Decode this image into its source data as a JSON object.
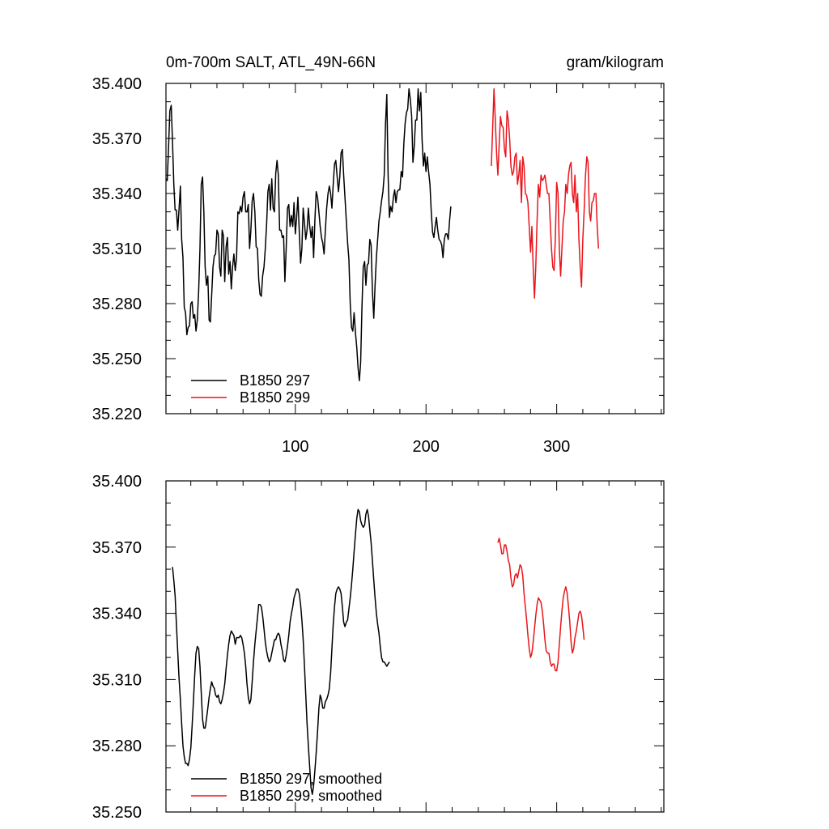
{
  "chart_data": [
    {
      "type": "line",
      "title_left": "0m-700m SALT, ATL_49N-66N",
      "title_right": "gram/kilogram",
      "xlabel": "",
      "ylabel": "",
      "xlim": [
        1,
        382
      ],
      "ylim": [
        35.22,
        35.4
      ],
      "x_ticks": [
        100,
        200,
        300
      ],
      "x_tick_labels": [
        "100",
        "200",
        "300"
      ],
      "y_ticks": [
        35.22,
        35.25,
        35.28,
        35.31,
        35.34,
        35.37,
        35.4
      ],
      "y_tick_labels": [
        "35.220",
        "35.250",
        "35.280",
        "35.310",
        "35.340",
        "35.370",
        "35.400"
      ],
      "grid": false,
      "legend_position": "bottom-left",
      "series": [
        {
          "name": "B1850 297",
          "color": "#000000",
          "x0": 1,
          "y": [
            35.348,
            35.347,
            35.365,
            35.385,
            35.388,
            35.368,
            35.345,
            35.331,
            35.331,
            35.32,
            35.331,
            35.344,
            35.315,
            35.305,
            35.278,
            35.275,
            35.263,
            35.267,
            35.268,
            35.28,
            35.281,
            35.272,
            35.274,
            35.265,
            35.271,
            35.287,
            35.31,
            35.345,
            35.349,
            35.33,
            35.3,
            35.29,
            35.295,
            35.271,
            35.27,
            35.285,
            35.3,
            35.306,
            35.307,
            35.32,
            35.318,
            35.3,
            35.295,
            35.32,
            35.317,
            35.292,
            35.311,
            35.316,
            35.296,
            35.303,
            35.288,
            35.3,
            35.307,
            35.298,
            35.305,
            35.33,
            35.329,
            35.333,
            35.33,
            35.338,
            35.341,
            35.33,
            35.33,
            35.334,
            35.31,
            35.32,
            35.336,
            35.34,
            35.33,
            35.311,
            35.31,
            35.293,
            35.285,
            35.284,
            35.295,
            35.3,
            35.31,
            35.323,
            35.341,
            35.345,
            35.331,
            35.348,
            35.332,
            35.33,
            35.351,
            35.358,
            35.35,
            35.32,
            35.32,
            35.316,
            35.317,
            35.292,
            35.31,
            35.332,
            35.334,
            35.322,
            35.328,
            35.322,
            35.335,
            35.318,
            35.327,
            35.338,
            35.32,
            35.302,
            35.31,
            35.332,
            35.324,
            35.315,
            35.32,
            35.332,
            35.322,
            35.316,
            35.322,
            35.305,
            35.326,
            35.341,
            35.338,
            35.33,
            35.322,
            35.316,
            35.313,
            35.307,
            35.32,
            35.332,
            35.34,
            35.344,
            35.34,
            35.332,
            35.345,
            35.356,
            35.358,
            35.349,
            35.341,
            35.349,
            35.362,
            35.364,
            35.35,
            35.338,
            35.325,
            35.313,
            35.304,
            35.28,
            35.267,
            35.265,
            35.275,
            35.264,
            35.256,
            35.245,
            35.238,
            35.248,
            35.278,
            35.3,
            35.303,
            35.29,
            35.301,
            35.302,
            35.315,
            35.312,
            35.287,
            35.272,
            35.29,
            35.305,
            35.315,
            35.325,
            35.33,
            35.336,
            35.341,
            35.35,
            35.378,
            35.394,
            35.35,
            35.327,
            35.333,
            35.33,
            35.338,
            35.342,
            35.335,
            35.341,
            35.342,
            35.342,
            35.352,
            35.349,
            35.367,
            35.378,
            35.384,
            35.386,
            35.397,
            35.391,
            35.382,
            35.357,
            35.366,
            35.38,
            35.38,
            35.397,
            35.385,
            35.395,
            35.369,
            35.355,
            35.362,
            35.352,
            35.36,
            35.352,
            35.345,
            35.33,
            35.319,
            35.316,
            35.322,
            35.327,
            35.32,
            35.315,
            35.314,
            35.312,
            35.305,
            35.315,
            35.318,
            35.318,
            35.315,
            35.325,
            35.333
          ]
        },
        {
          "name": "B1850 299",
          "color": "#e8151b",
          "x0": 250,
          "y": [
            35.355,
            35.375,
            35.397,
            35.38,
            35.362,
            35.35,
            35.367,
            35.382,
            35.377,
            35.376,
            35.364,
            35.36,
            35.385,
            35.38,
            35.37,
            35.355,
            35.35,
            35.352,
            35.36,
            35.362,
            35.345,
            35.35,
            35.358,
            35.335,
            35.36,
            35.355,
            35.34,
            35.339,
            35.335,
            35.322,
            35.308,
            35.322,
            35.3,
            35.283,
            35.3,
            35.325,
            35.345,
            35.338,
            35.35,
            35.347,
            35.348,
            35.35,
            35.345,
            35.34,
            35.34,
            35.325,
            35.31,
            35.3,
            35.298,
            35.316,
            35.346,
            35.34,
            35.31,
            35.295,
            35.31,
            35.325,
            35.33,
            35.345,
            35.34,
            35.35,
            35.355,
            35.357,
            35.34,
            35.335,
            35.35,
            35.33,
            35.34,
            35.315,
            35.3,
            35.289,
            35.315,
            35.33,
            35.349,
            35.36,
            35.357,
            35.33,
            35.325,
            35.335,
            35.336,
            35.34,
            35.34,
            35.322,
            35.31
          ]
        }
      ]
    },
    {
      "type": "line",
      "xlabel": "",
      "ylabel": "",
      "xlim": [
        1,
        382
      ],
      "ylim": [
        35.25,
        35.4
      ],
      "x_ticks": [
        100,
        200,
        300
      ],
      "y_ticks": [
        35.25,
        35.28,
        35.31,
        35.34,
        35.37,
        35.4
      ],
      "y_tick_labels": [
        "35.250",
        "35.280",
        "35.310",
        "35.340",
        "35.370",
        "35.400"
      ],
      "grid": false,
      "legend_position": "bottom-left",
      "series": [
        {
          "name": "B1850 297, smoothed",
          "color": "#000000",
          "x0": 6,
          "y": [
            35.361,
            35.355,
            35.348,
            35.335,
            35.323,
            35.311,
            35.301,
            35.29,
            35.28,
            35.275,
            35.272,
            35.272,
            35.271,
            35.274,
            35.279,
            35.289,
            35.3,
            35.312,
            35.322,
            35.325,
            35.324,
            35.316,
            35.304,
            35.292,
            35.288,
            35.288,
            35.292,
            35.297,
            35.302,
            35.306,
            35.309,
            35.307,
            35.306,
            35.303,
            35.302,
            35.303,
            35.3,
            35.299,
            35.301,
            35.304,
            35.308,
            35.315,
            35.321,
            35.326,
            35.33,
            35.332,
            35.331,
            35.33,
            35.326,
            35.329,
            35.329,
            35.329,
            35.33,
            35.329,
            35.326,
            35.322,
            35.316,
            35.308,
            35.302,
            35.299,
            35.301,
            35.309,
            35.318,
            35.326,
            35.332,
            35.338,
            35.344,
            35.344,
            35.343,
            35.339,
            35.333,
            35.327,
            35.323,
            35.32,
            35.318,
            35.319,
            35.322,
            35.325,
            35.328,
            35.328,
            35.33,
            35.331,
            35.33,
            35.326,
            35.323,
            35.319,
            35.318,
            35.321,
            35.325,
            35.33,
            35.336,
            35.34,
            35.343,
            35.347,
            35.349,
            35.351,
            35.351,
            35.349,
            35.344,
            35.337,
            35.328,
            35.316,
            35.303,
            35.29,
            35.28,
            35.27,
            35.261,
            35.258,
            35.262,
            35.269,
            35.277,
            35.286,
            35.297,
            35.303,
            35.301,
            35.297,
            35.297,
            35.3,
            35.301,
            35.303,
            35.306,
            35.313,
            35.324,
            35.335,
            35.343,
            35.349,
            35.351,
            35.352,
            35.351,
            35.349,
            35.343,
            35.336,
            35.334,
            35.336,
            35.337,
            35.342,
            35.347,
            35.353,
            35.36,
            35.368,
            35.376,
            35.383,
            35.387,
            35.386,
            35.382,
            35.38,
            35.379,
            35.38,
            35.385,
            35.387,
            35.384,
            35.378,
            35.372,
            35.364,
            35.355,
            35.347,
            35.34,
            35.335,
            35.331,
            35.325,
            35.32,
            35.318,
            35.318,
            35.317,
            35.316,
            35.317,
            35.318
          ]
        },
        {
          "name": "B1850 299, smoothed",
          "color": "#e8151b",
          "x0": 255,
          "y": [
            35.372,
            35.374,
            35.371,
            35.367,
            35.367,
            35.371,
            35.371,
            35.368,
            35.364,
            35.362,
            35.356,
            35.352,
            35.353,
            35.357,
            35.358,
            35.356,
            35.359,
            35.362,
            35.361,
            35.357,
            35.349,
            35.343,
            35.337,
            35.33,
            35.324,
            35.32,
            35.322,
            35.327,
            35.333,
            35.339,
            35.344,
            35.347,
            35.346,
            35.345,
            35.341,
            35.335,
            35.328,
            35.323,
            35.322,
            35.322,
            35.318,
            35.316,
            35.317,
            35.317,
            35.314,
            35.314,
            35.318,
            35.326,
            35.334,
            35.341,
            35.347,
            35.35,
            35.352,
            35.349,
            35.343,
            35.336,
            35.327,
            35.322,
            35.324,
            35.329,
            35.332,
            35.336,
            35.34,
            35.341,
            35.339,
            35.334,
            35.328
          ]
        }
      ]
    }
  ]
}
